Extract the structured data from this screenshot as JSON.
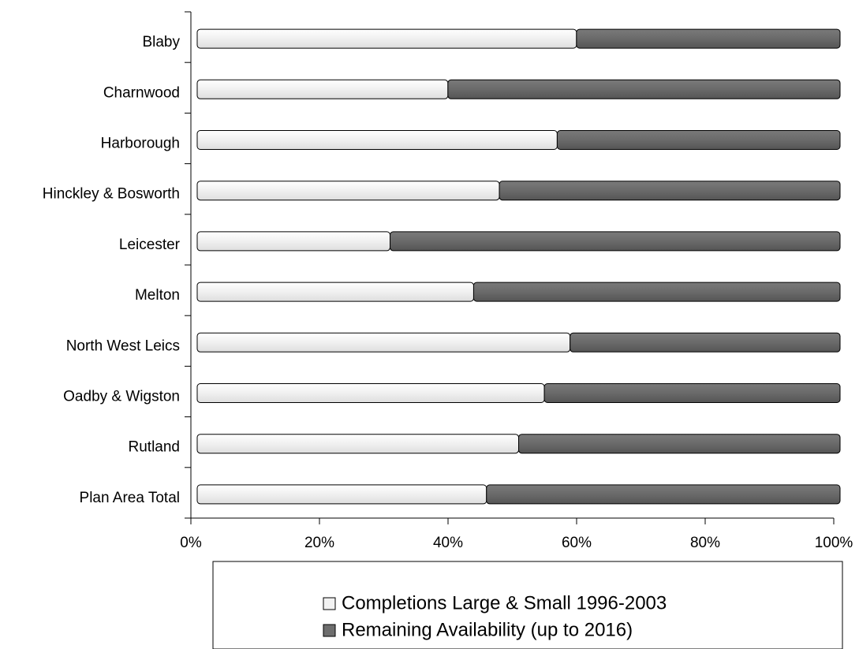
{
  "chart_data": {
    "type": "stacked-bar-horizontal",
    "categories": [
      "Blaby",
      "Charnwood",
      "Harborough",
      "Hinckley & Bosworth",
      "Leicester",
      "Melton",
      "North West Leics",
      "Oadby & Wigston",
      "Rutland",
      "Plan Area Total"
    ],
    "series": [
      {
        "name": "Completions Large & Small 1996-2003",
        "color": "#f2f2f2",
        "values": [
          59,
          39,
          56,
          47,
          30,
          43,
          58,
          54,
          50,
          45
        ]
      },
      {
        "name": "Remaining Availability (up to 2016)",
        "color": "#6e6e6e",
        "values": [
          41,
          61,
          44,
          53,
          70,
          57,
          42,
          46,
          50,
          55
        ]
      }
    ],
    "xlim": [
      0,
      100
    ],
    "xticks": [
      {
        "value": 0,
        "label": "0%"
      },
      {
        "value": 20,
        "label": "20%"
      },
      {
        "value": 40,
        "label": "40%"
      },
      {
        "value": 60,
        "label": "60%"
      },
      {
        "value": 80,
        "label": "80%"
      },
      {
        "value": 100,
        "label": "100%"
      }
    ],
    "legend": "bottom"
  }
}
